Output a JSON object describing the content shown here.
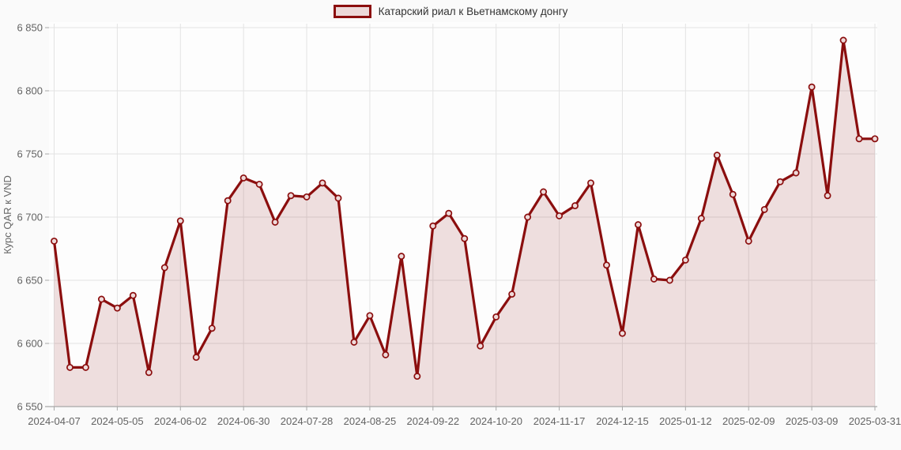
{
  "page": {
    "background": "#fafafa"
  },
  "legend": {
    "label": "Катарский риал к Вьетнамскому донгу",
    "swatch_border": "#8b0e0e",
    "swatch_fill": "#ecd9d9"
  },
  "chart_data": {
    "type": "area",
    "title": "",
    "ylabel": "Курс QAR к VND",
    "xlabel": "",
    "grid": true,
    "legend_position": "top-center",
    "series_name": "Катарский риал к Вьетнамскому донгу",
    "ylim": [
      6550,
      6850
    ],
    "x": [
      "2024-04-07",
      "2024-04-14",
      "2024-04-21",
      "2024-04-28",
      "2024-05-05",
      "2024-05-12",
      "2024-05-19",
      "2024-05-26",
      "2024-06-02",
      "2024-06-09",
      "2024-06-16",
      "2024-06-23",
      "2024-06-30",
      "2024-07-07",
      "2024-07-14",
      "2024-07-21",
      "2024-07-28",
      "2024-08-04",
      "2024-08-11",
      "2024-08-18",
      "2024-08-25",
      "2024-09-01",
      "2024-09-08",
      "2024-09-15",
      "2024-09-22",
      "2024-09-29",
      "2024-10-06",
      "2024-10-13",
      "2024-10-20",
      "2024-10-27",
      "2024-11-03",
      "2024-11-10",
      "2024-11-17",
      "2024-11-24",
      "2024-12-01",
      "2024-12-08",
      "2024-12-15",
      "2024-12-22",
      "2024-12-29",
      "2025-01-05",
      "2025-01-12",
      "2025-01-19",
      "2025-01-26",
      "2025-02-02",
      "2025-02-09",
      "2025-02-16",
      "2025-02-23",
      "2025-03-02",
      "2025-03-09",
      "2025-03-16",
      "2025-03-23",
      "2025-03-30",
      "2025-03-31"
    ],
    "values": [
      6681,
      6581,
      6581,
      6635,
      6628,
      6638,
      6577,
      6660,
      6697,
      6589,
      6612,
      6713,
      6731,
      6726,
      6696,
      6717,
      6716,
      6727,
      6715,
      6601,
      6622,
      6591,
      6669,
      6574,
      6693,
      6703,
      6683,
      6598,
      6621,
      6639,
      6700,
      6720,
      6701,
      6709,
      6727,
      6662,
      6608,
      6694,
      6651,
      6650,
      6666,
      6699,
      6749,
      6718,
      6681,
      6706,
      6728,
      6735,
      6803,
      6717,
      6840,
      6762,
      6762
    ],
    "y_ticks": {
      "values": [
        6850,
        6800,
        6750,
        6700,
        6650,
        6600,
        6550
      ],
      "labels": [
        "6 850",
        "6 800",
        "6 750",
        "6 700",
        "6 650",
        "6 600",
        "6 550"
      ]
    },
    "x_tick_indices": [
      0,
      4,
      8,
      12,
      16,
      20,
      24,
      28,
      32,
      36,
      40,
      44,
      48,
      52
    ],
    "x_tick_labels": [
      "2024-04-07",
      "2024-05-05",
      "2024-06-02",
      "2024-06-30",
      "2024-07-28",
      "2024-08-25",
      "2024-09-22",
      "2024-10-20",
      "2024-11-17",
      "2024-12-15",
      "2025-01-12",
      "2025-02-09",
      "2025-03-09",
      "2025-03-31"
    ],
    "colors": {
      "line": "#8b0e0e",
      "area_fill": "rgba(139,14,14,0.13)",
      "marker_fill": "#eedada",
      "marker_stroke": "#8b0e0e",
      "grid": "#e3e3e3",
      "axis_line": "#a8a8a8",
      "tick_text": "#636363",
      "plot_background": "#fdfdfd"
    }
  }
}
